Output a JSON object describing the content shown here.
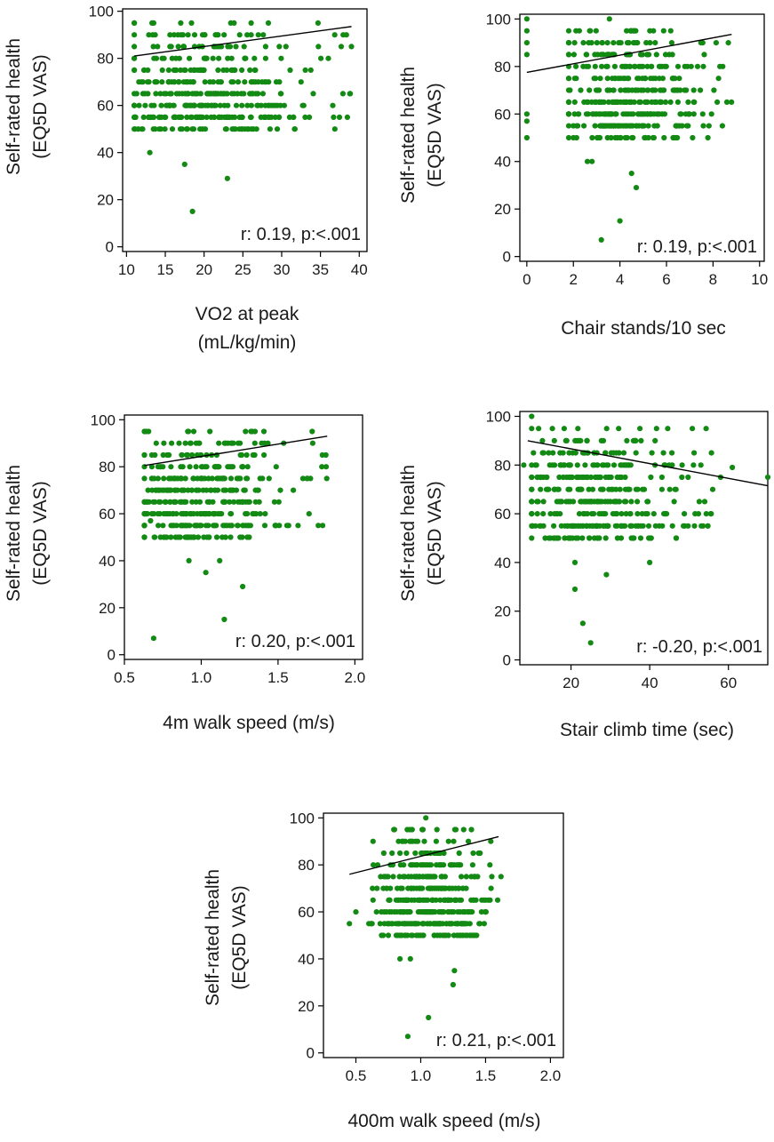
{
  "chart_data": [
    {
      "type": "scatter",
      "xlabel": [
        "VO2 at peak",
        "(mL/kg/min)"
      ],
      "ylabel": [
        "Self-rated health",
        "(EQ5D VAS)"
      ],
      "xlim": [
        9.5,
        41.0
      ],
      "ylim": [
        -2,
        101
      ],
      "xticks": [
        10,
        15,
        20,
        25,
        30,
        35,
        40
      ],
      "yticks": [
        0,
        20,
        40,
        60,
        80,
        100
      ],
      "annotation": "r: 0.19, p:<.001",
      "point_color": "#138a13",
      "fit_line": {
        "x": [
          11.0,
          39.0
        ],
        "y": [
          81.0,
          93.5
        ]
      },
      "cloud": {
        "x_range": [
          11,
          39
        ],
        "y_range": [
          50,
          100
        ],
        "x_center": 19.5,
        "n": 420,
        "seed": 11
      },
      "extra_points": [
        {
          "x": 17.5,
          "y": 35
        },
        {
          "x": 18.5,
          "y": 15
        },
        {
          "x": 23.0,
          "y": 29
        },
        {
          "x": 13.0,
          "y": 40
        },
        {
          "x": 39.0,
          "y": 85
        },
        {
          "x": 32.5,
          "y": 70
        }
      ]
    },
    {
      "type": "scatter",
      "xlabel": [
        "Chair stands/10 sec"
      ],
      "ylabel": [
        "Self-rated health",
        "(EQ5D VAS)"
      ],
      "xlim": [
        -0.3,
        10.2
      ],
      "ylim": [
        -2,
        102
      ],
      "xticks": [
        0,
        2,
        4,
        6,
        8,
        10
      ],
      "yticks": [
        0,
        20,
        40,
        60,
        80,
        100
      ],
      "annotation": "r: 0.19, p:<.001",
      "point_color": "#138a13",
      "fit_line": {
        "x": [
          0.0,
          8.8
        ],
        "y": [
          77.5,
          93.5
        ]
      },
      "cloud": {
        "x_range": [
          1.8,
          8.8
        ],
        "y_range": [
          50,
          100
        ],
        "x_center": 4.2,
        "n": 400,
        "seed": 22
      },
      "extra_points": [
        {
          "x": 0,
          "y": 100
        },
        {
          "x": 0,
          "y": 95
        },
        {
          "x": 0,
          "y": 90
        },
        {
          "x": 0,
          "y": 85
        },
        {
          "x": 0,
          "y": 60
        },
        {
          "x": 0,
          "y": 57
        },
        {
          "x": 0,
          "y": 50
        },
        {
          "x": 4.5,
          "y": 35
        },
        {
          "x": 4.7,
          "y": 29
        },
        {
          "x": 4.0,
          "y": 15
        },
        {
          "x": 3.2,
          "y": 7
        },
        {
          "x": 2.6,
          "y": 40
        },
        {
          "x": 2.8,
          "y": 40
        }
      ]
    },
    {
      "type": "scatter",
      "xlabel": [
        "4m walk speed (m/s)"
      ],
      "ylabel": [
        "Self-rated health",
        "(EQ5D VAS)"
      ],
      "xlim": [
        0.5,
        2.05
      ],
      "ylim": [
        -2,
        102
      ],
      "xticks": [
        0.5,
        1.0,
        1.5,
        2.0
      ],
      "xtick_labels": [
        "0.5",
        "1.0",
        "1.5",
        "2.0"
      ],
      "yticks": [
        0,
        20,
        40,
        60,
        80,
        100
      ],
      "annotation": "r: 0.20, p:<.001",
      "point_color": "#138a13",
      "fit_line": {
        "x": [
          0.63,
          1.82
        ],
        "y": [
          80.5,
          93.0
        ]
      },
      "cloud": {
        "x_range": [
          0.63,
          1.82
        ],
        "y_range": [
          50,
          100
        ],
        "x_center": 0.95,
        "n": 420,
        "seed": 33
      },
      "extra_points": [
        {
          "x": 0.69,
          "y": 7
        },
        {
          "x": 1.15,
          "y": 15
        },
        {
          "x": 1.27,
          "y": 29
        },
        {
          "x": 1.03,
          "y": 35
        },
        {
          "x": 0.92,
          "y": 40
        },
        {
          "x": 1.12,
          "y": 40
        },
        {
          "x": 0.65,
          "y": 60
        },
        {
          "x": 0.67,
          "y": 57
        }
      ]
    },
    {
      "type": "scatter",
      "xlabel": [
        "Stair climb time (sec)"
      ],
      "ylabel": [
        "Self-rated health",
        "(EQ5D VAS)"
      ],
      "xlim": [
        7,
        70
      ],
      "ylim": [
        -2,
        102
      ],
      "xticks": [
        20,
        40,
        60
      ],
      "yticks": [
        0,
        20,
        40,
        60,
        80,
        100
      ],
      "annotation": "r: -0.20, p:<.001",
      "point_color": "#138a13",
      "fit_line": {
        "x": [
          9,
          70
        ],
        "y": [
          90,
          71.5
        ]
      },
      "cloud": {
        "x_range": [
          10,
          56
        ],
        "y_range": [
          50,
          100
        ],
        "x_center": 24,
        "n": 400,
        "seed": 44
      },
      "extra_points": [
        {
          "x": 8,
          "y": 80
        },
        {
          "x": 70,
          "y": 75
        },
        {
          "x": 61,
          "y": 79
        },
        {
          "x": 58,
          "y": 75
        },
        {
          "x": 40,
          "y": 40
        },
        {
          "x": 21,
          "y": 40
        },
        {
          "x": 29,
          "y": 35
        },
        {
          "x": 21,
          "y": 29
        },
        {
          "x": 23,
          "y": 15
        },
        {
          "x": 25,
          "y": 7
        }
      ]
    },
    {
      "type": "scatter",
      "xlabel": [
        "400m walk speed (m/s)"
      ],
      "ylabel": [
        "Self-rated health",
        "(EQ5D VAS)"
      ],
      "xlim": [
        0.25,
        2.1
      ],
      "ylim": [
        -2,
        102
      ],
      "xticks": [
        0.5,
        1.0,
        1.5,
        2.0
      ],
      "xtick_labels": [
        "0.5",
        "1.0",
        "1.5",
        "2.0"
      ],
      "yticks": [
        0,
        20,
        40,
        60,
        80,
        100
      ],
      "annotation": "r: 0.21, p:<.001",
      "point_color": "#138a13",
      "fit_line": {
        "x": [
          0.45,
          1.6
        ],
        "y": [
          76,
          92
        ]
      },
      "cloud": {
        "x_range": [
          0.6,
          1.62
        ],
        "y_range": [
          50,
          100
        ],
        "x_center": 1.05,
        "n": 420,
        "seed": 55
      },
      "extra_points": [
        {
          "x": 0.45,
          "y": 55
        },
        {
          "x": 0.5,
          "y": 60
        },
        {
          "x": 0.84,
          "y": 40
        },
        {
          "x": 0.92,
          "y": 40
        },
        {
          "x": 1.06,
          "y": 15
        },
        {
          "x": 1.25,
          "y": 29
        },
        {
          "x": 1.26,
          "y": 35
        },
        {
          "x": 0.9,
          "y": 7
        }
      ]
    }
  ]
}
